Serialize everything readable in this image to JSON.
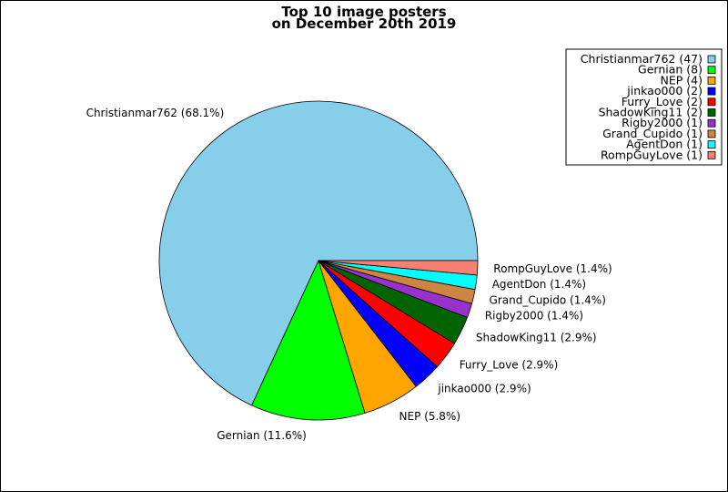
{
  "chart_data": {
    "type": "pie",
    "title_lines": [
      "Top 10 image posters",
      "on December 20th 2019"
    ],
    "slices": [
      {
        "name": "Christianmar762",
        "value": 47,
        "percent_label": "Christianmar762 (68.1%)",
        "legend_label": "Christianmar762 (47)",
        "color": "#87ceeb"
      },
      {
        "name": "Gernian",
        "value": 8,
        "percent_label": "Gernian (11.6%)",
        "legend_label": "Gernian (8)",
        "color": "#00ff00"
      },
      {
        "name": "NEP",
        "value": 4,
        "percent_label": "NEP (5.8%)",
        "legend_label": "NEP (4)",
        "color": "#ffa500"
      },
      {
        "name": "jinkao000",
        "value": 2,
        "percent_label": "jinkao000 (2.9%)",
        "legend_label": "jinkao000 (2)",
        "color": "#0000ff"
      },
      {
        "name": "Furry_Love",
        "value": 2,
        "percent_label": "Furry_Love (2.9%)",
        "legend_label": "Furry_Love (2)",
        "color": "#ff0000"
      },
      {
        "name": "ShadowKing11",
        "value": 2,
        "percent_label": "ShadowKing11 (2.9%)",
        "legend_label": "ShadowKing11 (2)",
        "color": "#006400"
      },
      {
        "name": "Rigby2000",
        "value": 1,
        "percent_label": "Rigby2000 (1.4%)",
        "legend_label": "Rigby2000 (1)",
        "color": "#9932cc"
      },
      {
        "name": "Grand_Cupido",
        "value": 1,
        "percent_label": "Grand_Cupido (1.4%)",
        "legend_label": "Grand_Cupido (1)",
        "color": "#cd853f"
      },
      {
        "name": "AgentDon",
        "value": 1,
        "percent_label": "AgentDon (1.4%)",
        "legend_label": "AgentDon (1)",
        "color": "#00ffff"
      },
      {
        "name": "RompGuyLove",
        "value": 1,
        "percent_label": "RompGuyLove (1.4%)",
        "legend_label": "RompGuyLove (1)",
        "color": "#fa8072"
      }
    ],
    "legend_placement": "top-right",
    "start_angle_deg": 0,
    "direction": "counterclockwise",
    "edge_color": "#000000"
  }
}
